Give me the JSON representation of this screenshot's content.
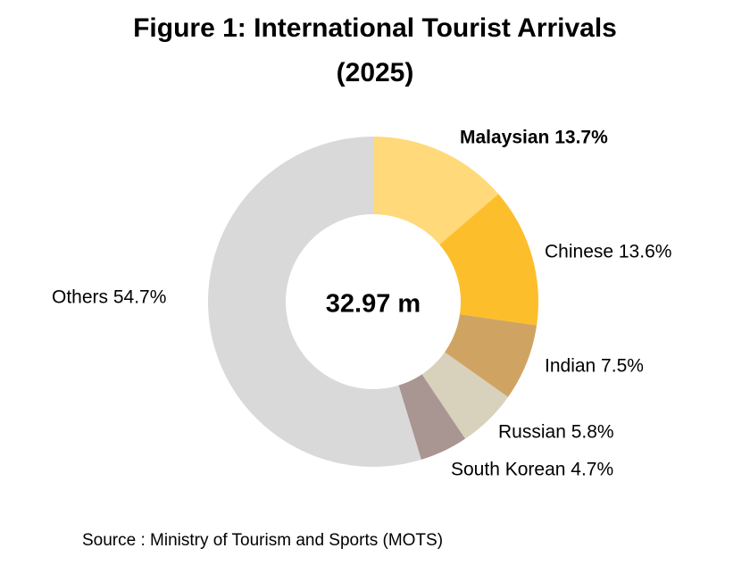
{
  "title_line1": "Figure 1: International Tourist Arrivals",
  "title_line2": "(2025)",
  "source": "Source : Ministry of Tourism and Sports (MOTS)",
  "chart_data": {
    "type": "pie",
    "subtype": "donut",
    "title": "Figure 1: International Tourist Arrivals (2025)",
    "center_label": "32.97 m",
    "start": "12 o'clock, clockwise",
    "slices": [
      {
        "label": "Malaysian",
        "value": 13.7,
        "display": "Malaysian 13.7%",
        "color": "#FFD97A",
        "bold": true
      },
      {
        "label": "Chinese",
        "value": 13.6,
        "display": "Chinese 13.6%",
        "color": "#FDBE2B",
        "bold": false
      },
      {
        "label": "Indian",
        "value": 7.5,
        "display": "Indian 7.5%",
        "color": "#CFA463",
        "bold": false
      },
      {
        "label": "Russian",
        "value": 5.8,
        "display": "Russian 5.8%",
        "color": "#D8D1BC",
        "bold": false
      },
      {
        "label": "South Korean",
        "value": 4.7,
        "display": "South Korean 4.7%",
        "color": "#A99592",
        "bold": false
      },
      {
        "label": "Others",
        "value": 54.7,
        "display": "Others 54.7%",
        "color": "#D9D9D9",
        "bold": false
      }
    ]
  }
}
